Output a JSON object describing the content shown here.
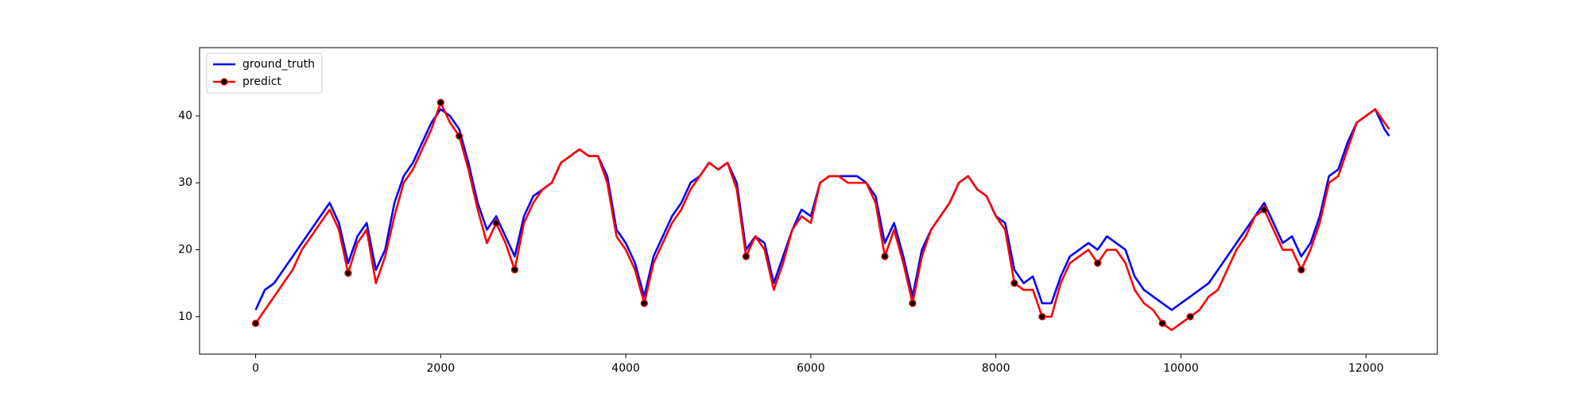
{
  "chart_data": {
    "type": "line",
    "x": [
      0,
      100,
      200,
      300,
      400,
      500,
      600,
      700,
      800,
      900,
      1000,
      1100,
      1200,
      1300,
      1400,
      1500,
      1600,
      1700,
      1800,
      1900,
      2000,
      2100,
      2200,
      2300,
      2400,
      2500,
      2600,
      2700,
      2800,
      2900,
      3000,
      3100,
      3200,
      3300,
      3400,
      3500,
      3600,
      3700,
      3800,
      3900,
      4000,
      4100,
      4200,
      4300,
      4400,
      4500,
      4600,
      4700,
      4800,
      4900,
      5000,
      5100,
      5200,
      5300,
      5400,
      5500,
      5600,
      5700,
      5800,
      5900,
      6000,
      6100,
      6200,
      6300,
      6400,
      6500,
      6600,
      6700,
      6800,
      6900,
      7000,
      7100,
      7200,
      7300,
      7400,
      7500,
      7600,
      7700,
      7800,
      7900,
      8000,
      8100,
      8200,
      8300,
      8400,
      8500,
      8600,
      8700,
      8800,
      8900,
      9000,
      9100,
      9200,
      9300,
      9400,
      9500,
      9600,
      9700,
      9800,
      9900,
      10000,
      10100,
      10200,
      10300,
      10400,
      10500,
      10600,
      10700,
      10800,
      10900,
      11000,
      11100,
      11200,
      11300,
      11400,
      11500,
      11600,
      11700,
      11800,
      11900,
      12000,
      12100,
      12200,
      12250
    ],
    "series": [
      {
        "name": "ground_truth",
        "color": "#0000ff",
        "values": [
          11,
          14,
          15,
          17,
          19,
          21,
          23,
          25,
          27,
          24,
          18,
          22,
          24,
          17,
          20,
          27,
          31,
          33,
          36,
          39,
          41,
          40,
          38,
          33,
          27,
          23,
          25,
          22,
          19,
          25,
          28,
          29,
          30,
          33,
          34,
          35,
          34,
          34,
          31,
          23,
          21,
          18,
          13,
          19,
          22,
          25,
          27,
          30,
          31,
          33,
          32,
          33,
          30,
          20,
          22,
          21,
          15,
          19,
          23,
          26,
          25,
          30,
          31,
          31,
          31,
          31,
          30,
          28,
          21,
          24,
          19,
          13,
          20,
          23,
          25,
          27,
          30,
          31,
          29,
          28,
          25,
          24,
          17,
          15,
          16,
          12,
          12,
          16,
          19,
          20,
          21,
          20,
          22,
          21,
          20,
          16,
          14,
          13,
          12,
          11,
          12,
          13,
          14,
          15,
          17,
          19,
          21,
          23,
          25,
          27,
          24,
          21,
          22,
          19,
          21,
          25,
          31,
          32,
          36,
          39,
          40,
          41,
          38,
          37
        ]
      },
      {
        "name": "predict",
        "color": "#ff0000",
        "marker_color": "#000000",
        "marker_indices": [
          0,
          10,
          20,
          22,
          26,
          28,
          42,
          53,
          68,
          71,
          82,
          85,
          91,
          98,
          101,
          109,
          113
        ],
        "values": [
          9,
          11,
          13,
          15,
          17,
          20,
          22,
          24,
          26,
          23,
          16.5,
          21,
          23,
          15,
          19,
          25,
          30,
          32,
          35,
          38,
          42,
          39,
          37,
          32,
          26,
          21,
          24,
          21,
          17,
          24,
          27,
          29,
          30,
          33,
          34,
          35,
          34,
          34,
          30,
          22,
          20,
          17,
          12,
          18,
          21,
          24,
          26,
          29,
          31,
          33,
          32,
          33,
          29,
          19,
          22,
          20,
          14,
          18,
          23,
          25,
          24,
          30,
          31,
          31,
          30,
          30,
          30,
          27,
          19,
          23,
          18,
          12,
          19,
          23,
          25,
          27,
          30,
          31,
          29,
          28,
          25,
          23,
          15,
          14,
          14,
          10,
          10,
          15,
          18,
          19,
          20,
          18,
          20,
          20,
          18,
          14,
          12,
          11,
          9,
          8,
          9,
          10,
          11,
          13,
          14,
          17,
          20,
          22,
          25,
          26,
          23,
          20,
          20,
          17,
          20,
          24,
          30,
          31,
          35,
          39,
          40,
          41,
          39,
          38
        ]
      }
    ],
    "xlim": [
      -606,
      12771
    ],
    "ylim": [
      4.4,
      50.2
    ],
    "xticks": [
      0,
      2000,
      4000,
      6000,
      8000,
      10000,
      12000
    ],
    "yticks": [
      10,
      20,
      30,
      40
    ],
    "grid": false,
    "legend": "upper left"
  }
}
